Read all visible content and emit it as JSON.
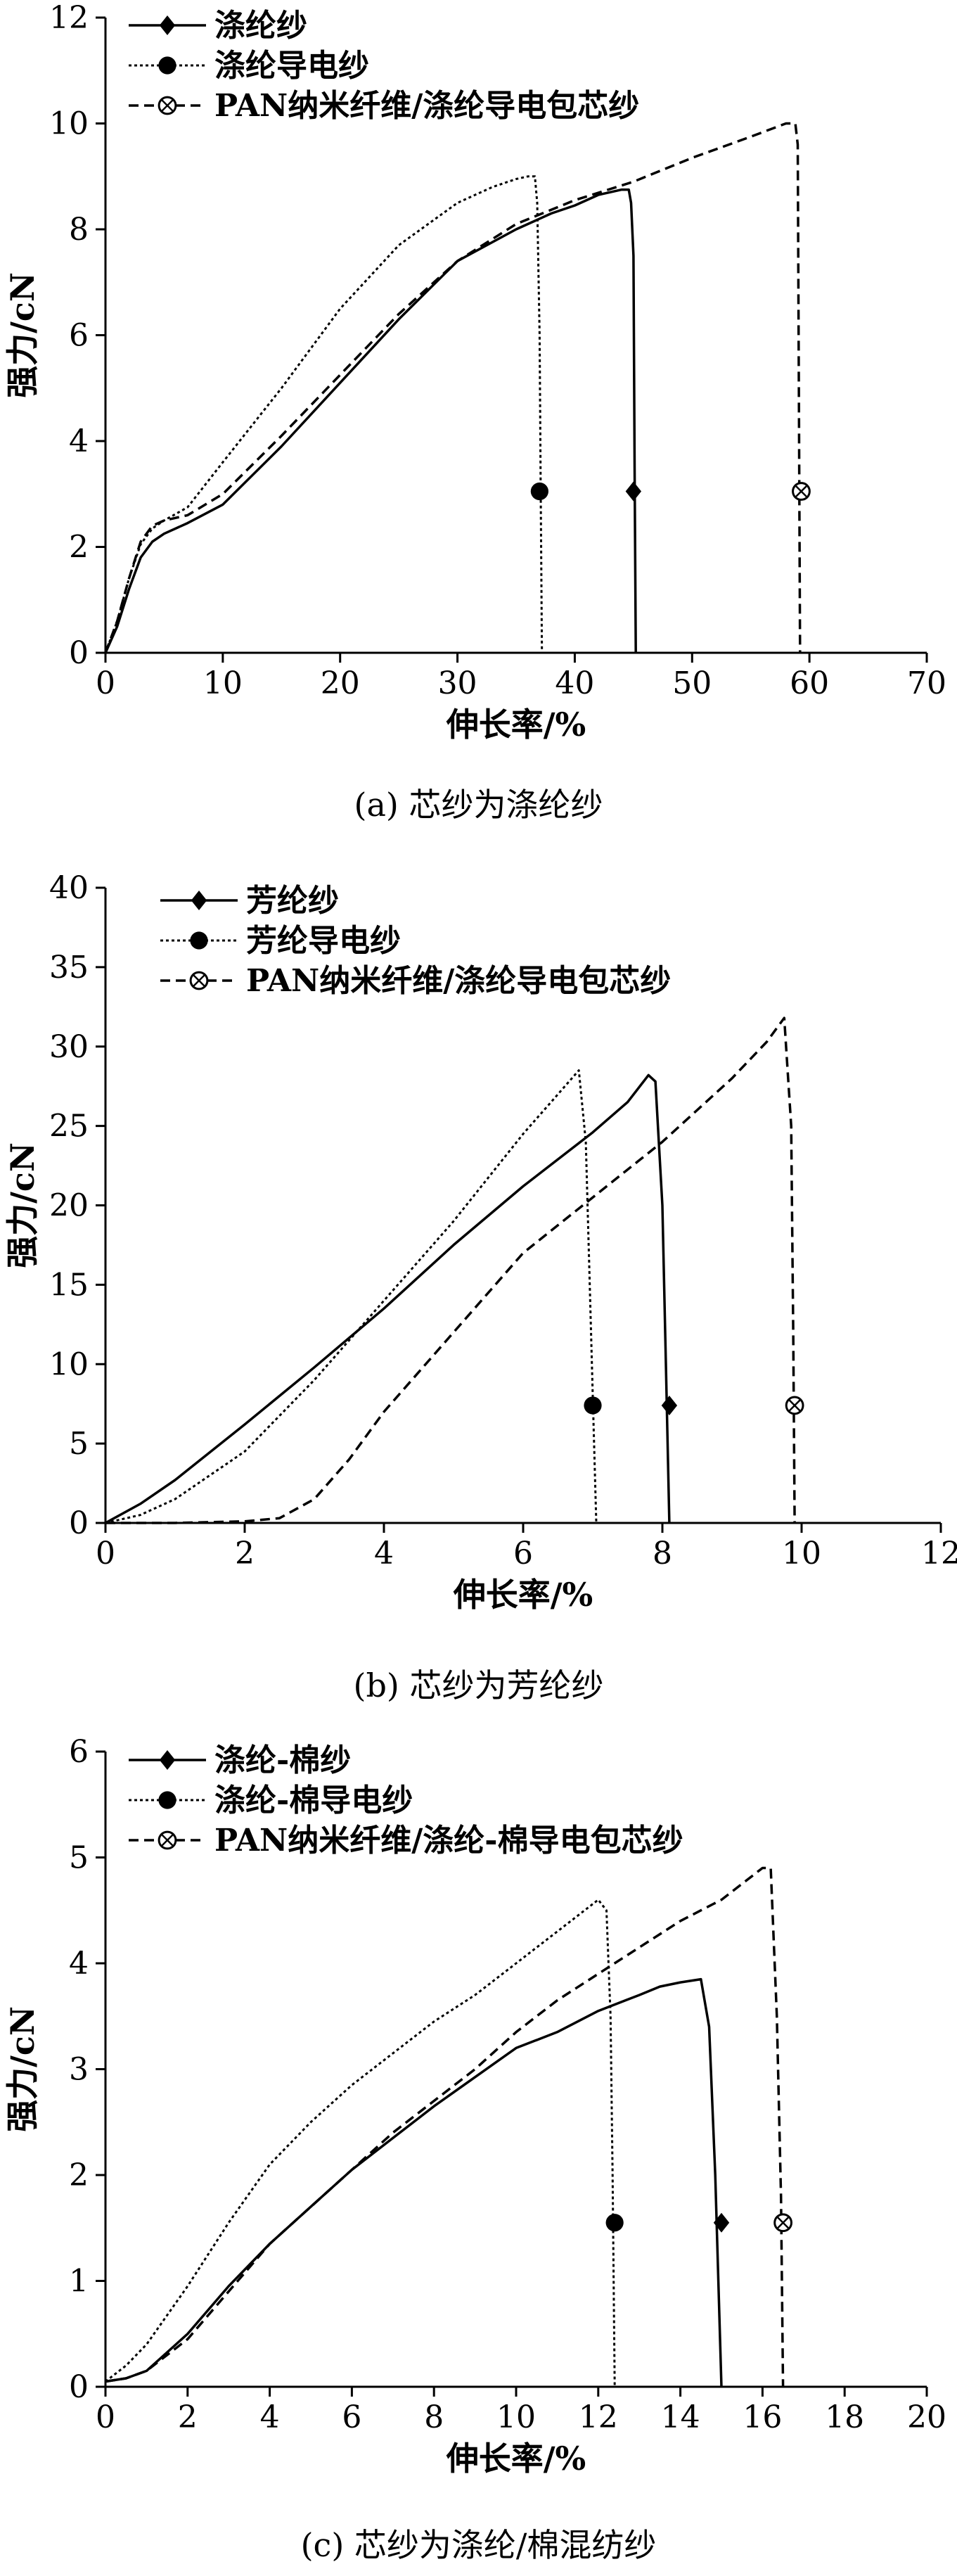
{
  "chart_data": [
    {
      "type": "line",
      "xlabel": "伸长率/%",
      "ylabel": "强力/cN",
      "xlim": [
        0,
        70
      ],
      "ylim": [
        0,
        12
      ],
      "xticks": [
        0,
        10,
        20,
        30,
        40,
        50,
        60,
        70
      ],
      "yticks": [
        0,
        2,
        4,
        6,
        8,
        10,
        12
      ],
      "caption": "(a) 芯纱为涤纶纱",
      "legend_position": "top-left",
      "series": [
        {
          "name": "涤纶纱",
          "style": "solid",
          "marker": "diamond",
          "marker_point": [
            45,
            3.05
          ],
          "x": [
            0,
            1,
            2,
            3,
            4,
            5,
            7,
            10,
            15,
            20,
            25,
            30,
            35,
            38,
            40,
            41,
            42,
            43,
            44,
            44.6,
            44.8,
            45,
            45.1,
            45.2
          ],
          "y": [
            0,
            0.5,
            1.2,
            1.8,
            2.1,
            2.25,
            2.45,
            2.8,
            3.9,
            5.1,
            6.3,
            7.4,
            8.0,
            8.3,
            8.45,
            8.55,
            8.65,
            8.7,
            8.75,
            8.75,
            8.5,
            7.5,
            3.5,
            0
          ]
        },
        {
          "name": "涤纶导电纱",
          "style": "dotted",
          "marker": "circle",
          "marker_point": [
            37,
            3.05
          ],
          "x": [
            0,
            1,
            2,
            3,
            4,
            5,
            7,
            10,
            15,
            20,
            25,
            30,
            33,
            35,
            36,
            36.6,
            36.8,
            37,
            37.1,
            37.2
          ],
          "y": [
            0,
            0.6,
            1.4,
            2.05,
            2.35,
            2.5,
            2.75,
            3.6,
            5.0,
            6.5,
            7.7,
            8.5,
            8.8,
            8.95,
            9.0,
            9.0,
            8.5,
            6.0,
            3.0,
            0
          ]
        },
        {
          "name": "PAN纳米纤维/涤纶导电包芯纱",
          "style": "dashed",
          "marker": "circle-x",
          "marker_point": [
            59.3,
            3.05
          ],
          "x": [
            0,
            1,
            2,
            3,
            4,
            5,
            7,
            10,
            15,
            20,
            25,
            30,
            35,
            40,
            45,
            50,
            55,
            58,
            58.8,
            59,
            59.1,
            59.2
          ],
          "y": [
            0,
            0.6,
            1.4,
            2.1,
            2.4,
            2.5,
            2.6,
            3.0,
            4.1,
            5.25,
            6.4,
            7.4,
            8.1,
            8.55,
            8.9,
            9.35,
            9.75,
            10.0,
            10.0,
            9.6,
            5.0,
            0
          ]
        }
      ]
    },
    {
      "type": "line",
      "xlabel": "伸长率/%",
      "ylabel": "强力/cN",
      "xlim": [
        0,
        12
      ],
      "ylim": [
        0,
        40
      ],
      "xticks": [
        0,
        2,
        4,
        6,
        8,
        10,
        12
      ],
      "yticks": [
        0,
        5,
        10,
        15,
        20,
        25,
        30,
        35,
        40
      ],
      "caption": "(b) 芯纱为芳纶纱",
      "legend_position": "top-left",
      "series": [
        {
          "name": "芳纶纱",
          "style": "solid",
          "marker": "diamond",
          "marker_point": [
            8.1,
            7.4
          ],
          "x": [
            0,
            0.5,
            1,
            2,
            3,
            4,
            5,
            6,
            7,
            7.5,
            7.8,
            7.9,
            8.0,
            8.05,
            8.1
          ],
          "y": [
            0,
            1.2,
            2.7,
            6.2,
            9.8,
            13.5,
            17.5,
            21.2,
            24.6,
            26.5,
            28.2,
            27.8,
            20,
            10,
            0
          ]
        },
        {
          "name": "芳纶导电纱",
          "style": "dotted",
          "marker": "circle",
          "marker_point": [
            7.0,
            7.4
          ],
          "x": [
            0,
            0.5,
            1,
            2,
            3,
            4,
            5,
            6,
            6.5,
            6.8,
            6.9,
            6.95,
            7.0,
            7.05
          ],
          "y": [
            0,
            0.5,
            1.5,
            4.5,
            9.0,
            14.0,
            19.0,
            24.5,
            27.0,
            28.5,
            24,
            16,
            8,
            0
          ]
        },
        {
          "name": "PAN纳米纤维/涤纶导电包芯纱",
          "style": "dashed",
          "marker": "circle-x",
          "marker_point": [
            9.9,
            7.4
          ],
          "x": [
            0,
            1,
            2,
            2.5,
            3,
            3.5,
            4,
            5,
            6,
            7,
            8,
            9,
            9.5,
            9.75,
            9.85,
            9.88,
            9.9
          ],
          "y": [
            0,
            0,
            0.1,
            0.3,
            1.5,
            4.0,
            7.0,
            12.0,
            17.0,
            20.5,
            24.0,
            28.0,
            30.3,
            31.8,
            25,
            12,
            0
          ]
        }
      ]
    },
    {
      "type": "line",
      "xlabel": "伸长率/%",
      "ylabel": "强力/cN",
      "xlim": [
        0,
        20
      ],
      "ylim": [
        0,
        6
      ],
      "xticks": [
        0,
        2,
        4,
        6,
        8,
        10,
        12,
        14,
        16,
        18,
        20
      ],
      "yticks": [
        0,
        1,
        2,
        3,
        4,
        5,
        6
      ],
      "caption": "(c) 芯纱为涤纶/棉混纺纱",
      "legend_position": "top-left",
      "series": [
        {
          "name": "涤纶-棉纱",
          "style": "solid",
          "marker": "diamond",
          "marker_point": [
            15.0,
            1.55
          ],
          "x": [
            0,
            0.5,
            1,
            2,
            3,
            4,
            5,
            6,
            8,
            10,
            11,
            12,
            13,
            13.5,
            14,
            14.5,
            14.7,
            14.85,
            15.0
          ],
          "y": [
            0.05,
            0.08,
            0.15,
            0.5,
            0.95,
            1.35,
            1.7,
            2.05,
            2.65,
            3.2,
            3.35,
            3.55,
            3.7,
            3.78,
            3.82,
            3.85,
            3.4,
            2.0,
            0
          ]
        },
        {
          "name": "涤纶-棉导电纱",
          "style": "dotted",
          "marker": "circle",
          "marker_point": [
            12.4,
            1.55
          ],
          "x": [
            0,
            0.5,
            1,
            2,
            3,
            4,
            5,
            6,
            7,
            8,
            9,
            10,
            11,
            11.5,
            12,
            12.2,
            12.3,
            12.35,
            12.4
          ],
          "y": [
            0.05,
            0.2,
            0.4,
            0.95,
            1.55,
            2.1,
            2.5,
            2.85,
            3.15,
            3.45,
            3.7,
            4.0,
            4.3,
            4.45,
            4.6,
            4.5,
            3.5,
            2.0,
            0
          ]
        },
        {
          "name": "PAN纳米纤维/涤纶-棉导电包芯纱",
          "style": "dashed",
          "marker": "circle-x",
          "marker_point": [
            16.5,
            1.55
          ],
          "x": [
            0,
            0.5,
            1,
            2,
            3,
            4,
            5,
            6,
            7,
            8,
            9,
            10,
            11,
            12,
            13,
            14,
            15,
            15.5,
            16,
            16.2,
            16.35,
            16.45,
            16.5
          ],
          "y": [
            0.05,
            0.08,
            0.15,
            0.45,
            0.9,
            1.35,
            1.7,
            2.05,
            2.4,
            2.7,
            3.0,
            3.35,
            3.65,
            3.9,
            4.15,
            4.4,
            4.6,
            4.75,
            4.9,
            4.9,
            3.5,
            1.8,
            0
          ]
        }
      ]
    }
  ]
}
